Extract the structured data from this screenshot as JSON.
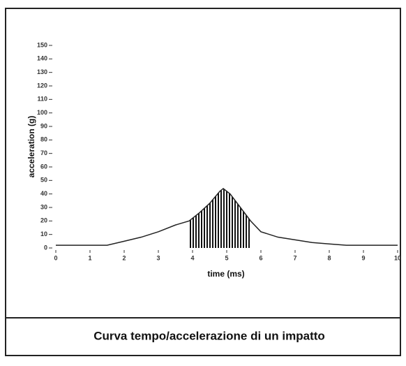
{
  "chart_data": {
    "type": "line",
    "caption": "Curva tempo/accelerazione di un impatto",
    "xlabel": "time (ms)",
    "ylabel": "acceleration (g)",
    "x": [
      0,
      1,
      1.5,
      2,
      2.5,
      3,
      3.5,
      3.9,
      4.2,
      4.5,
      4.8,
      4.9,
      5.1,
      5.4,
      5.7,
      6,
      6.5,
      7,
      7.5,
      8,
      8.5,
      9,
      10
    ],
    "series": [
      {
        "color": "#222",
        "values": [
          2,
          2,
          2,
          5,
          8,
          12,
          17,
          20,
          26,
          33,
          42,
          44,
          40,
          30,
          20,
          12,
          8,
          6,
          4,
          3,
          2,
          2,
          2
        ]
      }
    ],
    "xlim": [
      0,
      10
    ],
    "xticks": [
      0,
      1,
      2,
      3,
      4,
      5,
      6,
      7,
      8,
      9,
      10
    ],
    "ylim": [
      0,
      150
    ],
    "yticks": [
      0,
      10,
      20,
      30,
      40,
      50,
      60,
      70,
      80,
      90,
      100,
      110,
      120,
      130,
      140,
      150
    ]
  }
}
